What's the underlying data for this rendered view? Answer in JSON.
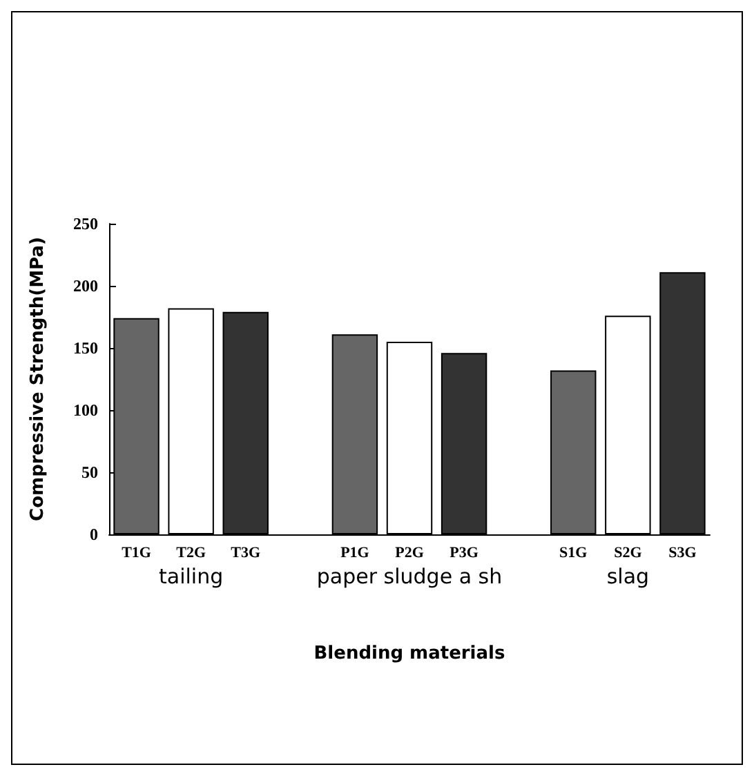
{
  "chart_data": {
    "type": "bar",
    "ylabel": "Compressive Strength(MPa)",
    "xlabel": "Blending materials",
    "categories": [
      "T1G",
      "T2G",
      "T3G",
      null,
      "P1G",
      "P2G",
      "P3G",
      null,
      "S1G",
      "S2G",
      "S3G"
    ],
    "values": [
      174,
      182,
      179,
      null,
      161,
      155,
      146,
      null,
      132,
      176,
      211
    ],
    "colors": [
      "#666666",
      "#ffffff",
      "#333333",
      "#ffffff",
      "#666666",
      "#ffffff",
      "#333333",
      "#ffffff",
      "#666666",
      "#ffffff",
      "#333333"
    ],
    "ylim": [
      0,
      250
    ],
    "yticks": [
      0,
      50,
      100,
      150,
      200,
      250
    ],
    "annotations": [
      "tailing",
      "paper sludge a sh",
      "slag"
    ],
    "grid": false
  }
}
